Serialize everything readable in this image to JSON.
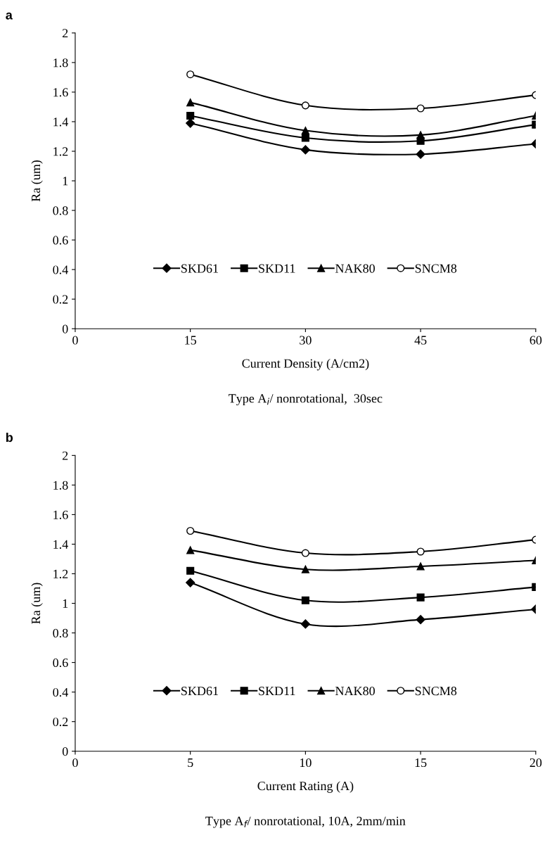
{
  "chart_data": [
    {
      "type": "line",
      "title": "a",
      "xlabel": "Current Density (A/cm2)",
      "ylabel": "Ra (um)",
      "annotations": [
        "Type A$_{i}$/ nonrotational,  30sec"
      ],
      "x": [
        15,
        30,
        45,
        60
      ],
      "xlim": [
        0,
        60
      ],
      "xticks": [
        0,
        15,
        30,
        45,
        60
      ],
      "ylim": [
        0,
        2
      ],
      "yticks": [
        0,
        0.2,
        0.4,
        0.6,
        0.8,
        1,
        1.2,
        1.4,
        1.6,
        1.8,
        2
      ],
      "legend": "center",
      "grid": false,
      "line_style": "solid",
      "series": [
        {
          "name": "SKD61",
          "color": "#000000",
          "marker": "diamond",
          "values": [
            1.39,
            1.21,
            1.18,
            1.25
          ]
        },
        {
          "name": "SKD11",
          "color": "#000000",
          "marker": "square",
          "values": [
            1.44,
            1.29,
            1.27,
            1.38
          ]
        },
        {
          "name": "NAK80",
          "color": "#000000",
          "marker": "triangle",
          "values": [
            1.53,
            1.34,
            1.31,
            1.44
          ]
        },
        {
          "name": "SNCM8",
          "color": "#000000",
          "marker": "circle",
          "values": [
            1.72,
            1.51,
            1.49,
            1.58
          ]
        }
      ]
    },
    {
      "type": "line",
      "title": "b",
      "xlabel": "Current Rating (A)",
      "ylabel": "Ra (um)",
      "annotations": [
        "Type A$_{f}$/ nonrotational, 10A, 2mm/min"
      ],
      "x": [
        5,
        10,
        15,
        20
      ],
      "xlim": [
        0,
        20
      ],
      "xticks": [
        0,
        5,
        10,
        15,
        20
      ],
      "ylim": [
        0,
        2
      ],
      "yticks": [
        0,
        0.2,
        0.4,
        0.6,
        0.8,
        1,
        1.2,
        1.4,
        1.6,
        1.8,
        2
      ],
      "legend": "center",
      "grid": false,
      "line_style": "solid",
      "series": [
        {
          "name": "SKD61",
          "color": "#000000",
          "marker": "diamond",
          "values": [
            1.14,
            0.86,
            0.89,
            0.96
          ]
        },
        {
          "name": "SKD11",
          "color": "#000000",
          "marker": "square",
          "values": [
            1.22,
            1.02,
            1.04,
            1.11
          ]
        },
        {
          "name": "NAK80",
          "color": "#000000",
          "marker": "triangle",
          "values": [
            1.36,
            1.23,
            1.25,
            1.29
          ]
        },
        {
          "name": "SNCM8",
          "color": "#000000",
          "marker": "circle",
          "values": [
            1.49,
            1.34,
            1.35,
            1.43
          ]
        }
      ]
    }
  ]
}
